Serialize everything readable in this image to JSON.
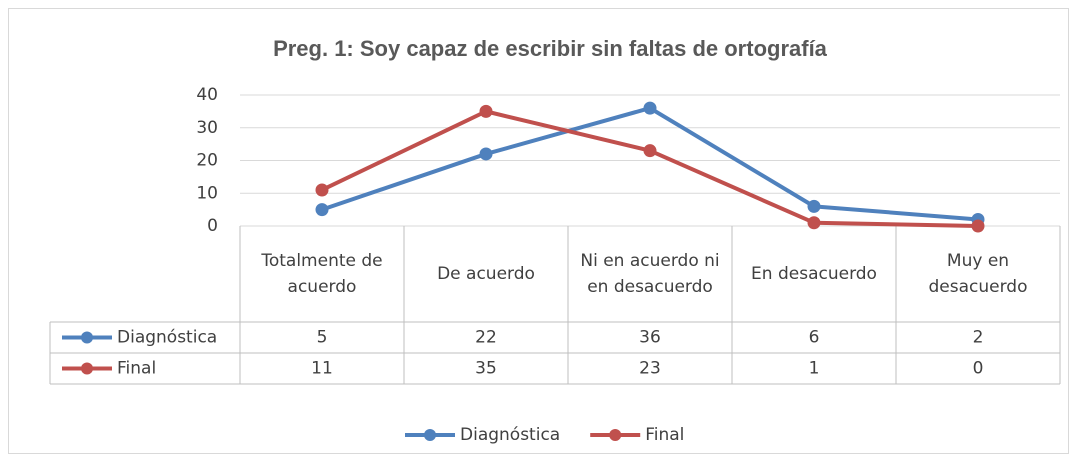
{
  "chart_data": {
    "type": "line",
    "title": "Preg. 1: Soy capaz de escribir sin faltas de ortografía",
    "categories": [
      "Totalmente de acuerdo",
      "De acuerdo",
      "Ni en acuerdo ni en desacuerdo",
      "En desacuerdo",
      "Muy en desacuerdo"
    ],
    "series": [
      {
        "name": "Diagnóstica",
        "color": "#4f81bd",
        "values": [
          5,
          22,
          36,
          6,
          2
        ]
      },
      {
        "name": "Final",
        "color": "#c0504d",
        "values": [
          11,
          35,
          23,
          1,
          0
        ]
      }
    ],
    "ylim": [
      0,
      40
    ],
    "yticks": [
      0,
      10,
      20,
      30,
      40
    ],
    "grid": true,
    "legend": "bottom",
    "data_table": true
  }
}
